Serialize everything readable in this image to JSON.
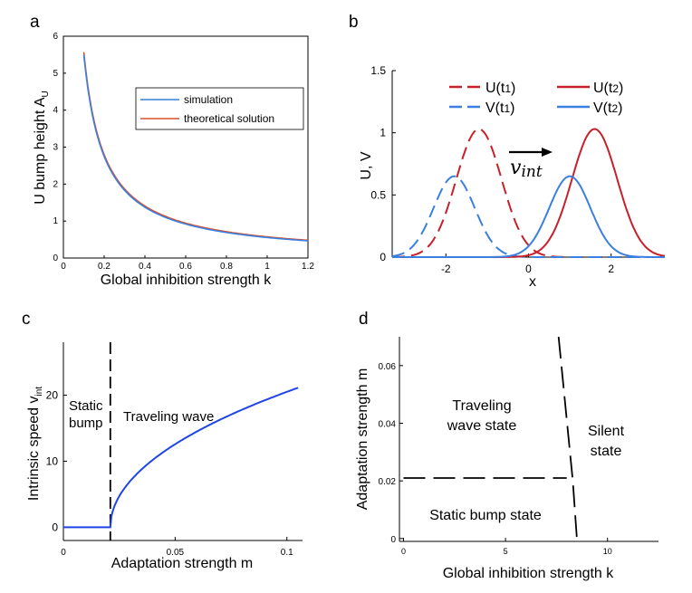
{
  "colors": {
    "blue": "#3b7fe0",
    "red": "#c8202a",
    "orange": "#d9502a",
    "wave_blue": "#1f45e6",
    "black": "#000000"
  },
  "chart_data": [
    {
      "panel": "a",
      "type": "line",
      "xlabel": "Global inhibition strength k",
      "ylabel": "U bump height A",
      "ylabel_sub": "U",
      "xlim": [
        0,
        1.2
      ],
      "ylim": [
        0,
        6
      ],
      "xticks": [
        "0",
        "0.2",
        "0.4",
        "0.6",
        "0.8",
        "1",
        "1.2"
      ],
      "yticks": [
        "0",
        "1",
        "2",
        "3",
        "4",
        "5",
        "6"
      ],
      "grid": false,
      "legend_position": "upper-right",
      "series": [
        {
          "name": "simulation",
          "color": "#3b7fe0",
          "x": [
            0.1,
            0.15,
            0.2,
            0.3,
            0.4,
            0.5,
            0.6,
            0.7,
            0.8,
            0.9,
            1.0,
            1.1,
            1.2
          ],
          "y": [
            5.5,
            3.62,
            2.7,
            1.78,
            1.33,
            1.06,
            0.88,
            0.76,
            0.67,
            0.6,
            0.54,
            0.5,
            0.46
          ]
        },
        {
          "name": "theoretical solution",
          "color": "#d9502a",
          "x": [
            0.1,
            0.15,
            0.2,
            0.3,
            0.4,
            0.5,
            0.6,
            0.7,
            0.8,
            0.9,
            1.0,
            1.1,
            1.2
          ],
          "y": [
            5.55,
            3.7,
            2.78,
            1.85,
            1.39,
            1.11,
            0.93,
            0.8,
            0.7,
            0.63,
            0.57,
            0.52,
            0.48
          ]
        }
      ]
    },
    {
      "panel": "b",
      "type": "line",
      "xlabel": "x",
      "ylabel": "U, V",
      "xlim": [
        -3.3,
        3.3
      ],
      "ylim": [
        0,
        1.5
      ],
      "xticks": [
        "-2",
        "0",
        "2"
      ],
      "yticks": [
        "0",
        "0.5",
        "1",
        "1.5"
      ],
      "annotation": "v",
      "annotation_sub": "int",
      "legend_position": "top-right",
      "series": [
        {
          "name": "U(t1)",
          "color": "#c8202a",
          "style": "dashed",
          "peak_x": -1.2,
          "peak_y": 1.03,
          "sigma": 0.55
        },
        {
          "name": "V(t1)",
          "color": "#3b7fe0",
          "style": "dashed",
          "peak_x": -1.8,
          "peak_y": 0.65,
          "sigma": 0.5
        },
        {
          "name": "U(t2)",
          "color": "#c8202a",
          "style": "solid",
          "peak_x": 1.6,
          "peak_y": 1.03,
          "sigma": 0.55
        },
        {
          "name": "V(t2)",
          "color": "#3b7fe0",
          "style": "solid",
          "peak_x": 1.0,
          "peak_y": 0.65,
          "sigma": 0.5
        }
      ]
    },
    {
      "panel": "c",
      "type": "line",
      "xlabel": "Adaptation strength m",
      "ylabel": "Intrinsic speed v",
      "ylabel_sub": "int",
      "xlim": [
        0,
        0.107
      ],
      "ylim": [
        -2,
        28
      ],
      "xticks": [
        "0",
        "0.05",
        "0.1"
      ],
      "yticks": [
        "0",
        "10",
        "20"
      ],
      "threshold_m": 0.021,
      "annotations": [
        "Static",
        "bump",
        "Traveling wave"
      ],
      "series": [
        {
          "name": "",
          "color": "#1f45e6",
          "x": [
            0,
            0.021,
            0.022,
            0.025,
            0.03,
            0.04,
            0.05,
            0.06,
            0.07,
            0.08,
            0.09,
            0.1,
            0.105
          ],
          "y": [
            0,
            0,
            2.1,
            4.1,
            6.3,
            9.6,
            12.3,
            14.6,
            16.6,
            18.4,
            20.0,
            21.0,
            21.3
          ]
        }
      ]
    },
    {
      "panel": "d",
      "type": "line",
      "xlabel": "Global inhibition strength k",
      "ylabel": "Adaptation strength m",
      "xlim": [
        -0.2,
        12.5
      ],
      "ylim": [
        -0.001,
        0.07
      ],
      "xticks": [
        "0",
        "5",
        "10"
      ],
      "yticks": [
        "0",
        "0.02",
        "0.04",
        "0.06"
      ],
      "regions": [
        "Traveling",
        "wave state",
        "Silent",
        "state",
        "Static bump state"
      ],
      "series": [
        {
          "name": "",
          "color": "#000000",
          "style": "dashed",
          "x": [
            0,
            8.0
          ],
          "y": [
            0.021,
            0.021
          ]
        },
        {
          "name": "",
          "color": "#000000",
          "style": "dashed",
          "x": [
            7.6,
            8.3,
            8.5
          ],
          "y": [
            0.07,
            0.02,
            0.0
          ]
        }
      ]
    }
  ],
  "panels": {
    "a": "a",
    "b": "b",
    "c": "c",
    "d": "d"
  }
}
